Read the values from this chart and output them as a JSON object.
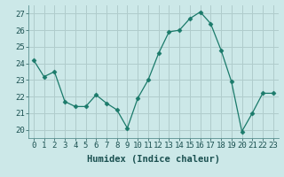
{
  "x": [
    0,
    1,
    2,
    3,
    4,
    5,
    6,
    7,
    8,
    9,
    10,
    11,
    12,
    13,
    14,
    15,
    16,
    17,
    18,
    19,
    20,
    21,
    22,
    23
  ],
  "y": [
    24.2,
    23.2,
    23.5,
    21.7,
    21.4,
    21.4,
    22.1,
    21.6,
    21.2,
    20.1,
    21.9,
    23.0,
    24.6,
    25.9,
    26.0,
    26.7,
    27.1,
    26.4,
    24.8,
    22.9,
    19.9,
    21.0,
    22.2,
    22.2
  ],
  "line_color": "#1a7a6a",
  "marker": "D",
  "marker_size": 2.5,
  "bg_color": "#cce8e8",
  "grid_color": "#b0cccc",
  "xlabel": "Humidex (Indice chaleur)",
  "ylim": [
    19.5,
    27.5
  ],
  "yticks": [
    20,
    21,
    22,
    23,
    24,
    25,
    26,
    27
  ],
  "xticks": [
    0,
    1,
    2,
    3,
    4,
    5,
    6,
    7,
    8,
    9,
    10,
    11,
    12,
    13,
    14,
    15,
    16,
    17,
    18,
    19,
    20,
    21,
    22,
    23
  ],
  "label_fontsize": 7.5,
  "tick_fontsize": 6.5
}
